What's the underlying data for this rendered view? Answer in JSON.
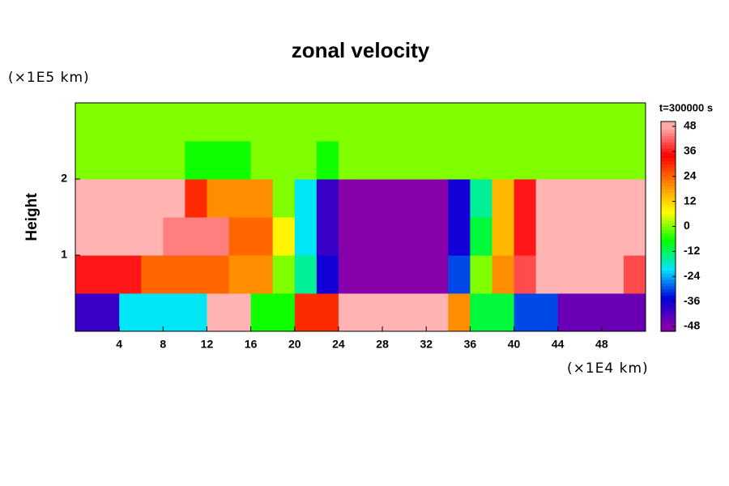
{
  "chart_data": {
    "type": "heatmap",
    "title": "zonal velocity",
    "y_unit": "(×1E5 km)",
    "x_unit": "(×1E4 km)",
    "ylabel": "Height",
    "time_label": "t=300000 s",
    "x": [
      1,
      3,
      5,
      7,
      9,
      11,
      13,
      15,
      17,
      19,
      21,
      23,
      25,
      27,
      29,
      31,
      33,
      35,
      37,
      39,
      41,
      43,
      45,
      47,
      49,
      51
    ],
    "y": [
      0.25,
      0.75,
      1.25,
      1.75,
      2.25,
      2.75
    ],
    "z": [
      [
        -40,
        -40,
        -20,
        -20,
        -20,
        -20,
        48,
        48,
        -6,
        -6,
        30,
        30,
        48,
        48,
        48,
        48,
        48,
        20,
        -10,
        -10,
        -30,
        -30,
        -45,
        -45,
        -45,
        -45
      ],
      [
        36,
        36,
        36,
        24,
        24,
        24,
        24,
        20,
        20,
        0,
        -15,
        -36,
        -48,
        -48,
        -48,
        -48,
        -48,
        -30,
        0,
        20,
        40,
        48,
        48,
        48,
        48,
        40
      ],
      [
        48,
        48,
        48,
        48,
        44,
        44,
        44,
        24,
        24,
        8,
        -20,
        -40,
        -48,
        -48,
        -48,
        -48,
        -48,
        -36,
        -10,
        15,
        36,
        48,
        48,
        48,
        48,
        48
      ],
      [
        48,
        48,
        48,
        48,
        48,
        30,
        20,
        20,
        20,
        0,
        -20,
        -40,
        -48,
        -48,
        -48,
        -48,
        -48,
        -36,
        -15,
        15,
        36,
        48,
        48,
        48,
        48,
        48
      ],
      [
        0,
        0,
        0,
        0,
        0,
        -6,
        -6,
        -6,
        0,
        0,
        0,
        -6,
        0,
        0,
        0,
        0,
        0,
        0,
        0,
        0,
        0,
        0,
        0,
        0,
        0,
        0
      ],
      [
        0,
        0,
        0,
        0,
        0,
        0,
        0,
        0,
        0,
        0,
        0,
        0,
        0,
        0,
        0,
        0,
        0,
        0,
        0,
        0,
        0,
        0,
        0,
        0,
        0,
        0
      ]
    ],
    "xlim": [
      0,
      52
    ],
    "ylim": [
      0,
      3
    ],
    "xticks": [
      4,
      8,
      12,
      16,
      20,
      24,
      28,
      32,
      36,
      40,
      44,
      48
    ],
    "yticks": [
      1,
      2
    ],
    "zlim": [
      -48,
      48
    ],
    "colorbar_ticks": [
      -48,
      -36,
      -24,
      -12,
      0,
      12,
      24,
      36,
      48
    ],
    "colors": [
      "#8800aa",
      "#0000dd",
      "#00e5ff",
      "#00ff00",
      "#ffff00",
      "#ff8800",
      "#ff0000",
      "#ffb3b3"
    ]
  }
}
